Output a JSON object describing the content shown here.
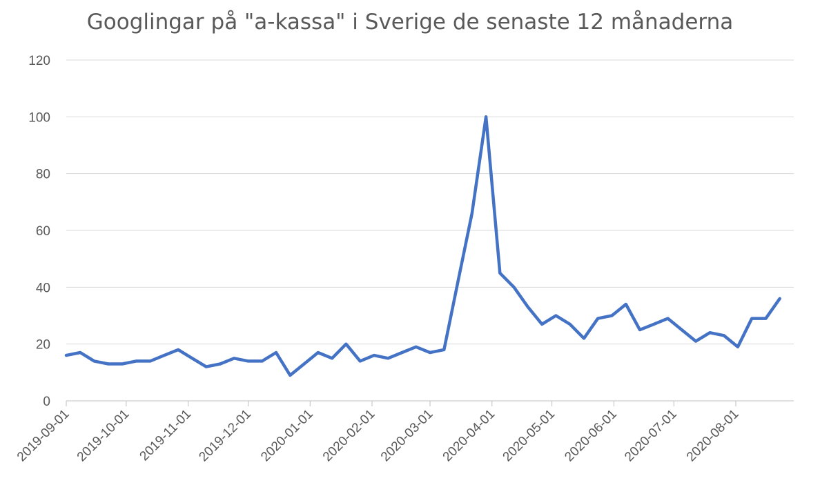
{
  "chart_data": {
    "type": "line",
    "title": "Googlingar på \"a-kassa\" i Sverige de senaste 12 månaderna",
    "xlabel": "",
    "ylabel": "",
    "ylim": [
      0,
      120
    ],
    "yticks": [
      "0",
      "20",
      "40",
      "60",
      "80",
      "100",
      "120"
    ],
    "xlim": [
      "2019-09-01",
      "2020-08-30"
    ],
    "xticks": [
      "2019-09-01",
      "2019-10-01",
      "2019-11-01",
      "2019-12-01",
      "2020-01-01",
      "2020-02-01",
      "2020-03-01",
      "2020-04-01",
      "2020-05-01",
      "2020-06-01",
      "2020-07-01",
      "2020-08-01"
    ],
    "grid": true,
    "legend": "none",
    "color": "#4472C4",
    "series": [
      {
        "x": [
          "2019-09-01",
          "2019-09-08",
          "2019-09-15",
          "2019-09-22",
          "2019-09-29",
          "2019-10-06",
          "2019-10-13",
          "2019-10-20",
          "2019-10-27",
          "2019-11-03",
          "2019-11-10",
          "2019-11-17",
          "2019-11-24",
          "2019-12-01",
          "2019-12-08",
          "2019-12-15",
          "2019-12-22",
          "2019-12-29",
          "2020-01-05",
          "2020-01-12",
          "2020-01-19",
          "2020-01-26",
          "2020-02-02",
          "2020-02-09",
          "2020-02-16",
          "2020-02-23",
          "2020-03-01",
          "2020-03-08",
          "2020-03-15",
          "2020-03-22",
          "2020-03-29",
          "2020-04-05",
          "2020-04-12",
          "2020-04-19",
          "2020-04-26",
          "2020-05-03",
          "2020-05-10",
          "2020-05-17",
          "2020-05-24",
          "2020-05-31",
          "2020-06-07",
          "2020-06-14",
          "2020-06-21",
          "2020-06-28",
          "2020-07-05",
          "2020-07-12",
          "2020-07-19",
          "2020-07-26",
          "2020-08-02",
          "2020-08-09",
          "2020-08-16",
          "2020-08-23"
        ],
        "values": [
          16,
          17,
          14,
          13,
          13,
          14,
          14,
          16,
          18,
          15,
          12,
          13,
          15,
          14,
          14,
          17,
          9,
          13,
          17,
          15,
          20,
          14,
          16,
          15,
          17,
          19,
          17,
          18,
          42,
          66,
          100,
          45,
          40,
          33,
          27,
          30,
          27,
          22,
          29,
          30,
          34,
          25,
          27,
          29,
          25,
          21,
          24,
          23,
          19,
          29,
          29,
          36
        ]
      }
    ]
  }
}
